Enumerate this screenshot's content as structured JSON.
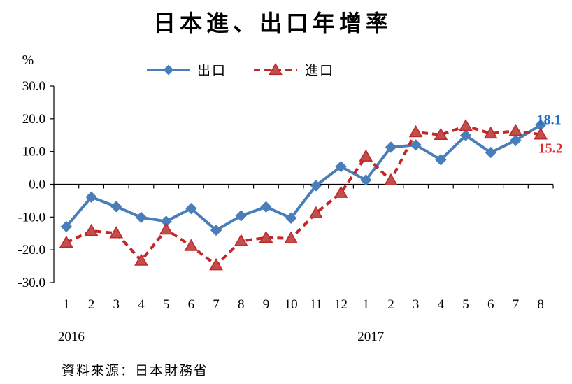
{
  "chart_data": {
    "type": "line",
    "title": "日本進、出口年增率",
    "unit_label": "%",
    "ylim": [
      -30,
      30
    ],
    "y_ticks": [
      "30.0",
      "20.0",
      "10.0",
      "0.0",
      "-10.0",
      "-20.0",
      "-30.0"
    ],
    "y_tick_values": [
      30,
      20,
      10,
      0,
      -10,
      -20,
      -30
    ],
    "categories": [
      "1",
      "2",
      "3",
      "4",
      "5",
      "6",
      "7",
      "8",
      "9",
      "10",
      "11",
      "12",
      "1",
      "2",
      "3",
      "4",
      "5",
      "6",
      "7",
      "8"
    ],
    "years": [
      {
        "label": "2016",
        "start_index": 0
      },
      {
        "label": "2017",
        "start_index": 12
      }
    ],
    "series": [
      {
        "name": "出口",
        "color": "#4a7ebb",
        "line_style": "solid",
        "marker": "diamond",
        "values": [
          -12.9,
          -3.9,
          -6.8,
          -10.1,
          -11.3,
          -7.4,
          -14.0,
          -9.6,
          -6.9,
          -10.3,
          -0.4,
          5.4,
          1.3,
          11.3,
          12.0,
          7.5,
          14.9,
          9.7,
          13.4,
          18.1
        ],
        "end_label": "18.1",
        "end_label_color": "#1f6fc5"
      },
      {
        "name": "進口",
        "color": "#c0282a",
        "marker_fill": "#c0504d",
        "line_style": "dashed",
        "marker": "triangle",
        "values": [
          -17.8,
          -14.2,
          -14.9,
          -23.3,
          -13.8,
          -18.8,
          -24.7,
          -17.3,
          -16.3,
          -16.5,
          -8.8,
          -2.6,
          8.5,
          1.2,
          15.9,
          15.1,
          17.8,
          15.5,
          16.3,
          15.2
        ],
        "end_label": "15.2",
        "end_label_color": "#e0282e"
      }
    ],
    "grid": false,
    "legend_position": "top-center"
  },
  "footer": {
    "source": "資料來源：日本財務省"
  }
}
